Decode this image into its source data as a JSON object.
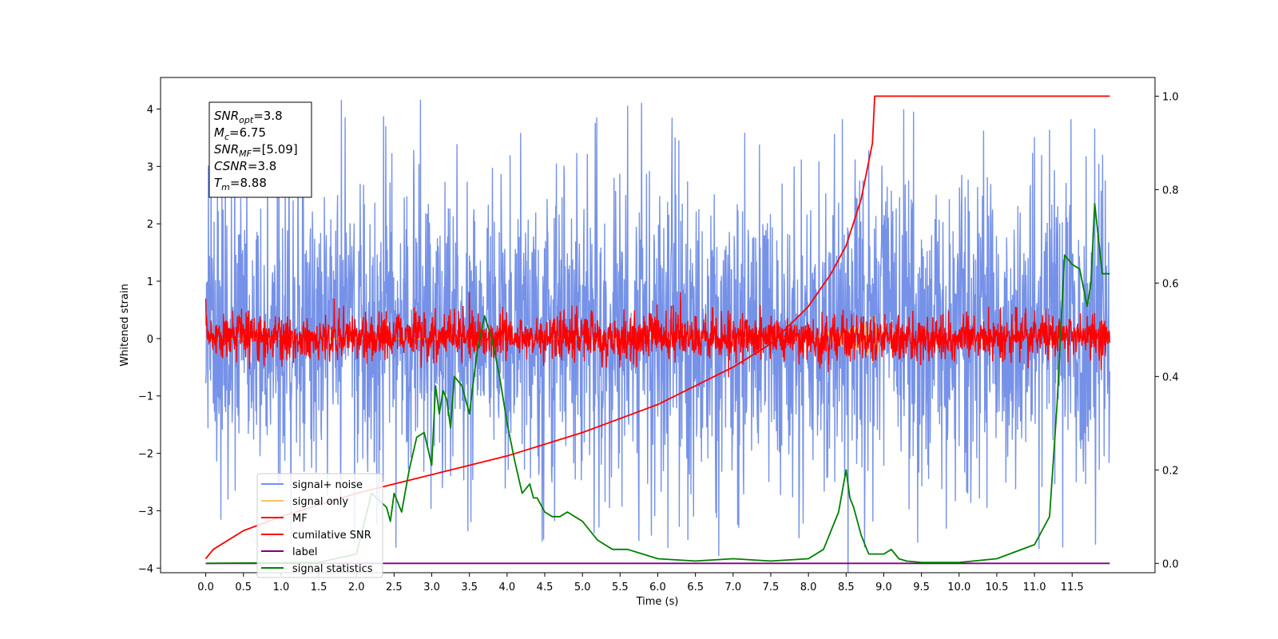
{
  "chart_data": {
    "type": "line",
    "xlabel": "Time (s)",
    "ylabel": "Whitened strain",
    "xlim": [
      -0.6,
      12.6
    ],
    "ylim": [
      -4.08,
      4.55
    ],
    "y2lim": [
      -0.02,
      1.04
    ],
    "xticks": [
      0.0,
      0.5,
      1.0,
      1.5,
      2.0,
      2.5,
      3.0,
      3.5,
      4.0,
      4.5,
      5.0,
      5.5,
      6.0,
      6.5,
      7.0,
      7.5,
      8.0,
      8.5,
      9.0,
      9.5,
      10.0,
      10.5,
      11.0,
      11.5
    ],
    "xtick_labels": [
      "0.0",
      "0.5",
      "1.0",
      "1.5",
      "2.0",
      "2.5",
      "3.0",
      "3.5",
      "4.0",
      "4.5",
      "5.0",
      "5.5",
      "6.0",
      "6.5",
      "7.0",
      "7.5",
      "8.0",
      "8.5",
      "9.0",
      "9.5",
      "10.0",
      "10.5",
      "11.0",
      "11.5"
    ],
    "yticks": [
      -4,
      -3,
      -2,
      -1,
      0,
      1,
      2,
      3,
      4
    ],
    "ytick_labels": [
      "−4",
      "−3",
      "−2",
      "−1",
      "0",
      "1",
      "2",
      "3",
      "4"
    ],
    "y2ticks": [
      0.0,
      0.2,
      0.4,
      0.6,
      0.8,
      1.0
    ],
    "y2tick_labels": [
      "0.0",
      "0.2",
      "0.4",
      "0.6",
      "0.8",
      "1.0"
    ],
    "grid": false,
    "legend_position": "bottom-left",
    "annotation": [
      {
        "base": "SNR",
        "sub": "opt",
        "rest": "=3.8"
      },
      {
        "base": "M",
        "sub": "c",
        "rest": "=6.75"
      },
      {
        "base": "SNR",
        "sub": "MF",
        "rest": "=[5.09]"
      },
      {
        "base": "CSNR",
        "sub": "",
        "rest": "=3.8"
      },
      {
        "base": "T",
        "sub": "m",
        "rest": "=8.88"
      }
    ],
    "series": [
      {
        "name": "signal+ noise",
        "color": "#7692e8",
        "axis": "left",
        "style": "noise",
        "x_range": [
          0.0,
          12.0
        ],
        "envelope_typical": [
          -2.2,
          2.4
        ],
        "peaks": [
          {
            "x": 1.8,
            "y": 4.15
          },
          {
            "x": 5.6,
            "y": 4.05
          },
          {
            "x": 11.8,
            "y": 3.65
          },
          {
            "x": 0.2,
            "y": -3.15
          },
          {
            "x": 9.45,
            "y": -3.55
          }
        ]
      },
      {
        "name": "signal only",
        "color": "#f5c36b",
        "axis": "left",
        "style": "chirp",
        "x": [
          0.0,
          8.0,
          8.6,
          8.88,
          9.0
        ],
        "amplitude": [
          0.0,
          0.02,
          0.2,
          0.45,
          0.0
        ]
      },
      {
        "name": "MF",
        "color": "#ff0000",
        "axis": "left",
        "style": "noise",
        "x_range": [
          0.0,
          12.0
        ],
        "envelope_typical": [
          -0.3,
          0.35
        ],
        "peaks": [
          {
            "x": 0.0,
            "y": 0.7
          },
          {
            "x": 3.5,
            "y": 0.8
          },
          {
            "x": 6.3,
            "y": 0.8
          },
          {
            "x": 6.15,
            "y": -0.35
          }
        ]
      },
      {
        "name": "cumilative SNR",
        "color": "#ff0000",
        "axis": "right",
        "x": [
          0.0,
          0.1,
          0.5,
          1.0,
          2.0,
          3.0,
          4.0,
          5.0,
          6.0,
          7.0,
          7.5,
          8.0,
          8.3,
          8.5,
          8.7,
          8.85,
          8.88,
          9.0,
          10.0,
          11.0,
          12.0
        ],
        "values": [
          0.01,
          0.03,
          0.07,
          0.1,
          0.15,
          0.19,
          0.23,
          0.28,
          0.34,
          0.42,
          0.47,
          0.55,
          0.62,
          0.68,
          0.78,
          0.9,
          1.0,
          1.0,
          1.0,
          1.0,
          1.0
        ]
      },
      {
        "name": "label",
        "color": "#800080",
        "axis": "right",
        "x": [
          0.0,
          12.0
        ],
        "values": [
          0.0,
          0.0
        ]
      },
      {
        "name": "signal statistics",
        "color": "#008000",
        "axis": "right",
        "x": [
          0.0,
          1.5,
          2.0,
          2.2,
          2.4,
          2.45,
          2.5,
          2.6,
          2.7,
          2.8,
          2.9,
          3.0,
          3.05,
          3.1,
          3.15,
          3.2,
          3.25,
          3.3,
          3.4,
          3.5,
          3.6,
          3.7,
          3.8,
          3.9,
          4.0,
          4.1,
          4.2,
          4.3,
          4.35,
          4.4,
          4.5,
          4.6,
          4.7,
          4.8,
          5.0,
          5.2,
          5.4,
          5.6,
          5.8,
          6.0,
          6.5,
          7.0,
          7.5,
          8.0,
          8.2,
          8.4,
          8.5,
          8.55,
          8.6,
          8.7,
          8.8,
          8.9,
          9.0,
          9.1,
          9.2,
          9.3,
          9.5,
          10.0,
          10.5,
          11.0,
          11.2,
          11.3,
          11.4,
          11.5,
          11.6,
          11.7,
          11.75,
          11.8,
          11.9,
          12.0
        ],
        "values": [
          0.0,
          0.002,
          0.02,
          0.15,
          0.12,
          0.09,
          0.15,
          0.11,
          0.2,
          0.27,
          0.28,
          0.21,
          0.38,
          0.32,
          0.37,
          0.35,
          0.29,
          0.4,
          0.38,
          0.32,
          0.45,
          0.53,
          0.48,
          0.4,
          0.3,
          0.22,
          0.15,
          0.17,
          0.14,
          0.14,
          0.11,
          0.1,
          0.1,
          0.11,
          0.09,
          0.05,
          0.03,
          0.03,
          0.02,
          0.01,
          0.005,
          0.01,
          0.005,
          0.01,
          0.03,
          0.11,
          0.2,
          0.14,
          0.12,
          0.06,
          0.02,
          0.02,
          0.02,
          0.03,
          0.01,
          0.005,
          0.002,
          0.002,
          0.01,
          0.04,
          0.1,
          0.34,
          0.66,
          0.64,
          0.63,
          0.55,
          0.6,
          0.77,
          0.62,
          0.62
        ]
      }
    ]
  }
}
